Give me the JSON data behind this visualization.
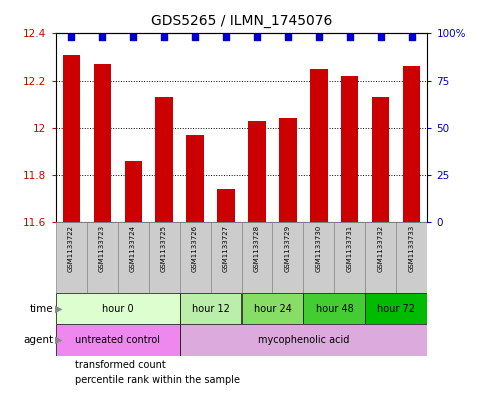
{
  "title": "GDS5265 / ILMN_1745076",
  "samples": [
    "GSM1133722",
    "GSM1133723",
    "GSM1133724",
    "GSM1133725",
    "GSM1133726",
    "GSM1133727",
    "GSM1133728",
    "GSM1133729",
    "GSM1133730",
    "GSM1133731",
    "GSM1133732",
    "GSM1133733"
  ],
  "bar_values": [
    12.31,
    12.27,
    11.86,
    12.13,
    11.97,
    11.74,
    12.03,
    12.04,
    12.25,
    12.22,
    12.13,
    12.26
  ],
  "bar_color": "#cc0000",
  "percentile_color": "#0000cc",
  "ylim_left": [
    11.6,
    12.4
  ],
  "ylim_right": [
    0,
    100
  ],
  "yticks_left": [
    11.6,
    11.8,
    12.0,
    12.2,
    12.4
  ],
  "yticks_right": [
    0,
    25,
    50,
    75,
    100
  ],
  "ytick_labels_right": [
    "0",
    "25",
    "50",
    "75",
    "100%"
  ],
  "ytick_labels_left": [
    "11.6",
    "11.8",
    "12",
    "12.2",
    "12.4"
  ],
  "time_groups": [
    {
      "label": "hour 0",
      "start": 0,
      "end": 3,
      "color": "#ddffd0"
    },
    {
      "label": "hour 12",
      "start": 4,
      "end": 5,
      "color": "#bbeeaa"
    },
    {
      "label": "hour 24",
      "start": 6,
      "end": 7,
      "color": "#88dd66"
    },
    {
      "label": "hour 48",
      "start": 8,
      "end": 9,
      "color": "#44cc33"
    },
    {
      "label": "hour 72",
      "start": 10,
      "end": 11,
      "color": "#00bb00"
    }
  ],
  "agent_groups": [
    {
      "label": "untreated control",
      "start": 0,
      "end": 3,
      "color": "#ee88ee"
    },
    {
      "label": "mycophenolic acid",
      "start": 4,
      "end": 11,
      "color": "#ddaadd"
    }
  ],
  "legend_items": [
    {
      "label": "transformed count",
      "color": "#cc0000"
    },
    {
      "label": "percentile rank within the sample",
      "color": "#0000cc"
    }
  ],
  "bar_width": 0.55,
  "sample_box_color": "#cccccc",
  "sample_box_edge": "#888888",
  "background_color": "#ffffff",
  "axis_color_left": "#cc0000",
  "axis_color_right": "#0000cc",
  "grid_lines": [
    11.8,
    12.0,
    12.2
  ]
}
